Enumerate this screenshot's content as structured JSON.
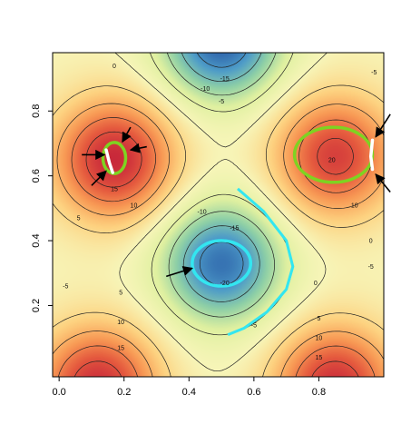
{
  "chart_data": {
    "type": "heatmap",
    "subtype": "filled-contour",
    "title": "",
    "xlabel": "",
    "ylabel": "",
    "xlim": [
      0,
      1
    ],
    "ylim": [
      0,
      1
    ],
    "x_ticks": [
      "0.0",
      "0.2",
      "0.4",
      "0.6",
      "0.8"
    ],
    "x_tick_values": [
      0.0,
      0.2,
      0.4,
      0.6,
      0.8
    ],
    "y_ticks": [
      "0.2",
      "0.4",
      "0.6",
      "0.8"
    ],
    "y_tick_values": [
      0.2,
      0.4,
      0.6,
      0.8
    ],
    "colormap": "spectral (blue = low, red = high)",
    "color_stops": [
      "#2b5fa8",
      "#4e9cc8",
      "#8fd0a6",
      "#dff0a0",
      "#f7f5b8",
      "#fdd280",
      "#f89a55",
      "#e55a3e",
      "#c8283a"
    ],
    "surface_peaks": [
      {
        "x": 0.17,
        "y": 0.65,
        "value": 25,
        "kind": "max"
      },
      {
        "x": 0.85,
        "y": 0.66,
        "value": 22,
        "kind": "max"
      },
      {
        "x": 0.5,
        "y": 0.33,
        "value": -23,
        "kind": "min"
      },
      {
        "x": 0.5,
        "y": 1.02,
        "value": -25,
        "kind": "min"
      },
      {
        "x": 0.12,
        "y": -0.05,
        "value": 24,
        "kind": "max"
      },
      {
        "x": 0.85,
        "y": -0.05,
        "value": 24,
        "kind": "max"
      }
    ],
    "contour_levels": [
      -20,
      -15,
      -10,
      -5,
      0,
      5,
      10,
      15,
      20
    ],
    "contour_labels": [
      {
        "text": "0",
        "x": 0.17,
        "y": 0.94
      },
      {
        "text": "-15",
        "x": 0.51,
        "y": 0.9
      },
      {
        "text": "-5",
        "x": 0.5,
        "y": 0.83
      },
      {
        "text": "-10",
        "x": 0.45,
        "y": 0.87
      },
      {
        "text": "-5",
        "x": 0.97,
        "y": 0.92
      },
      {
        "text": "20",
        "x": 0.84,
        "y": 0.65
      },
      {
        "text": "15",
        "x": 0.17,
        "y": 0.56
      },
      {
        "text": "10",
        "x": 0.23,
        "y": 0.51
      },
      {
        "text": "10",
        "x": 0.91,
        "y": 0.51
      },
      {
        "text": "5",
        "x": 0.06,
        "y": 0.47
      },
      {
        "text": "-10",
        "x": 0.44,
        "y": 0.49
      },
      {
        "text": "-15",
        "x": 0.54,
        "y": 0.44
      },
      {
        "text": "-20",
        "x": 0.51,
        "y": 0.27
      },
      {
        "text": "0",
        "x": 0.96,
        "y": 0.4
      },
      {
        "text": "-5",
        "x": 0.96,
        "y": 0.32
      },
      {
        "text": "-5",
        "x": 0.02,
        "y": 0.26
      },
      {
        "text": "0",
        "x": 0.79,
        "y": 0.27
      },
      {
        "text": "5",
        "x": 0.19,
        "y": 0.24
      },
      {
        "text": "10",
        "x": 0.19,
        "y": 0.15
      },
      {
        "text": "15",
        "x": 0.19,
        "y": 0.07
      },
      {
        "text": "5",
        "x": 0.8,
        "y": 0.16
      },
      {
        "text": "10",
        "x": 0.8,
        "y": 0.1
      },
      {
        "text": "15",
        "x": 0.8,
        "y": 0.04
      },
      {
        "text": "-5",
        "x": 0.6,
        "y": 0.14
      }
    ],
    "highlighted_curves": [
      {
        "color": "#7ed321",
        "shape": "closed",
        "cx": 0.17,
        "cy": 0.655,
        "rx": 0.035,
        "ry": 0.048,
        "around": "max"
      },
      {
        "color": "#7ed321",
        "shape": "closed",
        "cx": 0.845,
        "cy": 0.665,
        "rx": 0.12,
        "ry": 0.085,
        "around": "max"
      },
      {
        "color": "#33e6f0",
        "shape": "closed",
        "cx": 0.5,
        "cy": 0.33,
        "rx": 0.09,
        "ry": 0.07,
        "around": "min"
      },
      {
        "color": "#33e6f0",
        "shape": "open",
        "points": [
          [
            0.55,
            0.56
          ],
          [
            0.63,
            0.49
          ],
          [
            0.7,
            0.4
          ],
          [
            0.72,
            0.32
          ],
          [
            0.7,
            0.25
          ],
          [
            0.64,
            0.18
          ],
          [
            0.57,
            0.13
          ],
          [
            0.52,
            0.11
          ]
        ]
      }
    ],
    "white_segments": [
      {
        "points": [
          [
            0.145,
            0.68
          ],
          [
            0.155,
            0.64
          ],
          [
            0.165,
            0.61
          ]
        ]
      },
      {
        "points": [
          [
            0.965,
            0.71
          ],
          [
            0.96,
            0.66
          ],
          [
            0.965,
            0.62
          ]
        ]
      }
    ],
    "arrows": [
      {
        "from": [
          0.07,
          0.665
        ],
        "to": [
          0.14,
          0.665
        ]
      },
      {
        "from": [
          0.22,
          0.75
        ],
        "to": [
          0.195,
          0.705
        ]
      },
      {
        "from": [
          0.27,
          0.69
        ],
        "to": [
          0.22,
          0.68
        ]
      },
      {
        "from": [
          0.1,
          0.57
        ],
        "to": [
          0.145,
          0.615
        ]
      },
      {
        "from": [
          0.33,
          0.29
        ],
        "to": [
          0.41,
          0.315
        ]
      },
      {
        "from": [
          1.02,
          0.79
        ],
        "to": [
          0.975,
          0.72
        ]
      },
      {
        "from": [
          1.02,
          0.55
        ],
        "to": [
          0.975,
          0.605
        ]
      }
    ]
  }
}
